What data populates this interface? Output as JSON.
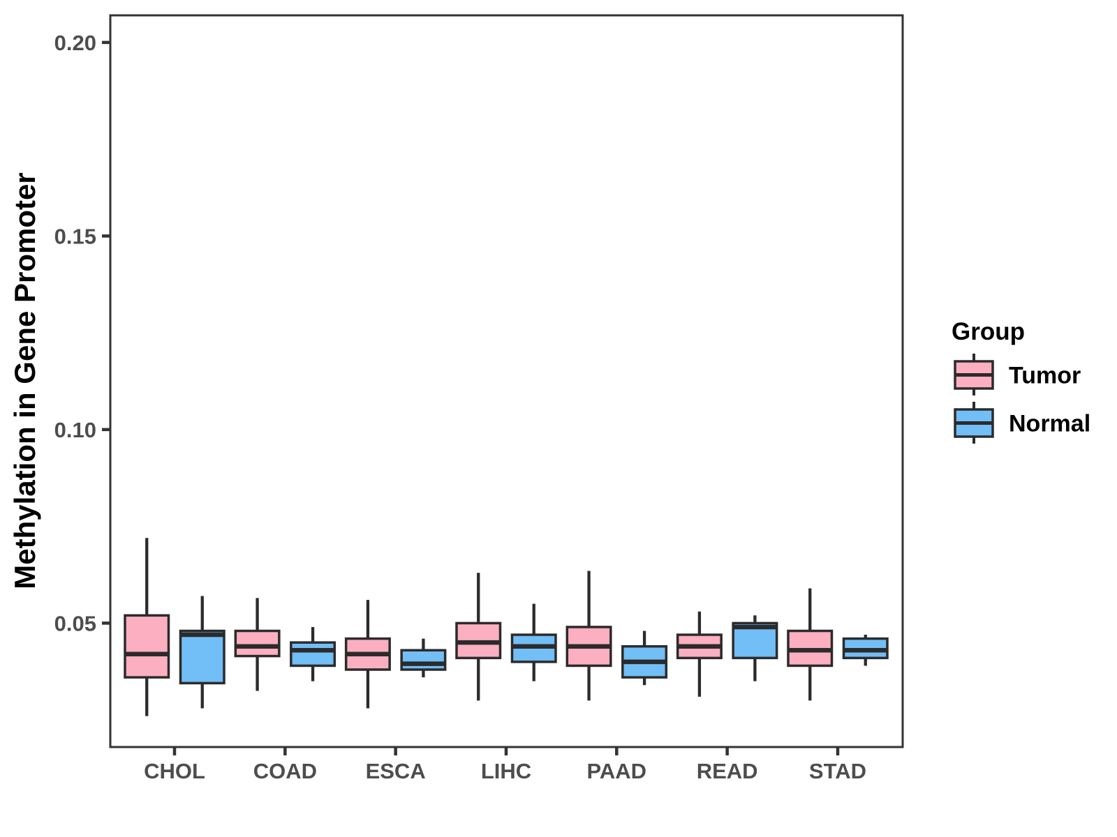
{
  "figure": {
    "background": "#FFFFFF"
  },
  "style": {
    "tumor_fill": "#FCAFC0",
    "normal_fill": "#72BEF6",
    "box_border": "#2B2B2B",
    "panel_border": "#333333",
    "tick_color": "#333333",
    "tick_label_color": "#4D4D4D",
    "axis_title_color": "#000000",
    "legend_text_color": "#000000"
  },
  "chart_data": {
    "type": "grouped_boxplot",
    "title": "",
    "xlabel": "",
    "ylabel": "Methylation in Gene Promoter",
    "categories": [
      "CHOL",
      "COAD",
      "ESCA",
      "LIHC",
      "PAAD",
      "READ",
      "STAD"
    ],
    "y_ticks": [
      {
        "value": 0.05,
        "label": "0.05"
      },
      {
        "value": 0.1,
        "label": "0.10"
      },
      {
        "value": 0.15,
        "label": "0.15"
      },
      {
        "value": 0.2,
        "label": "0.20"
      }
    ],
    "ylim": [
      0.018,
      0.207
    ],
    "grid": "off",
    "legend": {
      "title": "Group",
      "position": "right",
      "entries": [
        {
          "label": "Tumor",
          "color": "#FCAFC0"
        },
        {
          "label": "Normal",
          "color": "#72BEF6"
        }
      ]
    },
    "series": [
      {
        "name": "Tumor",
        "color": "#FCAFC0",
        "boxes": [
          {
            "category": "CHOL",
            "whisker_low": 0.026,
            "q1": 0.036,
            "median": 0.042,
            "q3": 0.052,
            "whisker_high": 0.072
          },
          {
            "category": "COAD",
            "whisker_low": 0.0325,
            "q1": 0.0415,
            "median": 0.044,
            "q3": 0.048,
            "whisker_high": 0.0565
          },
          {
            "category": "ESCA",
            "whisker_low": 0.028,
            "q1": 0.038,
            "median": 0.042,
            "q3": 0.046,
            "whisker_high": 0.056
          },
          {
            "category": "LIHC",
            "whisker_low": 0.03,
            "q1": 0.041,
            "median": 0.045,
            "q3": 0.05,
            "whisker_high": 0.063
          },
          {
            "category": "PAAD",
            "whisker_low": 0.03,
            "q1": 0.039,
            "median": 0.044,
            "q3": 0.049,
            "whisker_high": 0.0635
          },
          {
            "category": "READ",
            "whisker_low": 0.031,
            "q1": 0.041,
            "median": 0.044,
            "q3": 0.047,
            "whisker_high": 0.053
          },
          {
            "category": "STAD",
            "whisker_low": 0.03,
            "q1": 0.039,
            "median": 0.043,
            "q3": 0.048,
            "whisker_high": 0.059
          }
        ]
      },
      {
        "name": "Normal",
        "color": "#72BEF6",
        "boxes": [
          {
            "category": "CHOL",
            "whisker_low": 0.028,
            "q1": 0.0345,
            "median": 0.047,
            "q3": 0.048,
            "whisker_high": 0.057
          },
          {
            "category": "COAD",
            "whisker_low": 0.035,
            "q1": 0.039,
            "median": 0.043,
            "q3": 0.045,
            "whisker_high": 0.049
          },
          {
            "category": "ESCA",
            "whisker_low": 0.036,
            "q1": 0.038,
            "median": 0.0395,
            "q3": 0.043,
            "whisker_high": 0.046
          },
          {
            "category": "LIHC",
            "whisker_low": 0.035,
            "q1": 0.04,
            "median": 0.044,
            "q3": 0.047,
            "whisker_high": 0.055
          },
          {
            "category": "PAAD",
            "whisker_low": 0.034,
            "q1": 0.036,
            "median": 0.04,
            "q3": 0.044,
            "whisker_high": 0.048
          },
          {
            "category": "READ",
            "whisker_low": 0.035,
            "q1": 0.041,
            "median": 0.049,
            "q3": 0.05,
            "whisker_high": 0.052
          },
          {
            "category": "STAD",
            "whisker_low": 0.039,
            "q1": 0.041,
            "median": 0.043,
            "q3": 0.046,
            "whisker_high": 0.047
          }
        ]
      }
    ]
  }
}
